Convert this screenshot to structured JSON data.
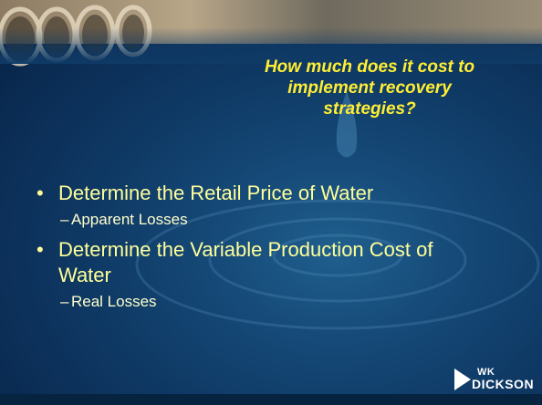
{
  "slide": {
    "title_lines": [
      "How much does it cost to",
      "implement recovery",
      "strategies?"
    ],
    "bullets": [
      {
        "text": "Determine the Retail Price of Water",
        "sub": [
          "Apparent Losses"
        ]
      },
      {
        "text": "Determine the Variable Production Cost of Water",
        "sub": [
          "Real Losses"
        ]
      }
    ],
    "logo": {
      "top": "WK",
      "bottom": "DICKSON"
    }
  }
}
